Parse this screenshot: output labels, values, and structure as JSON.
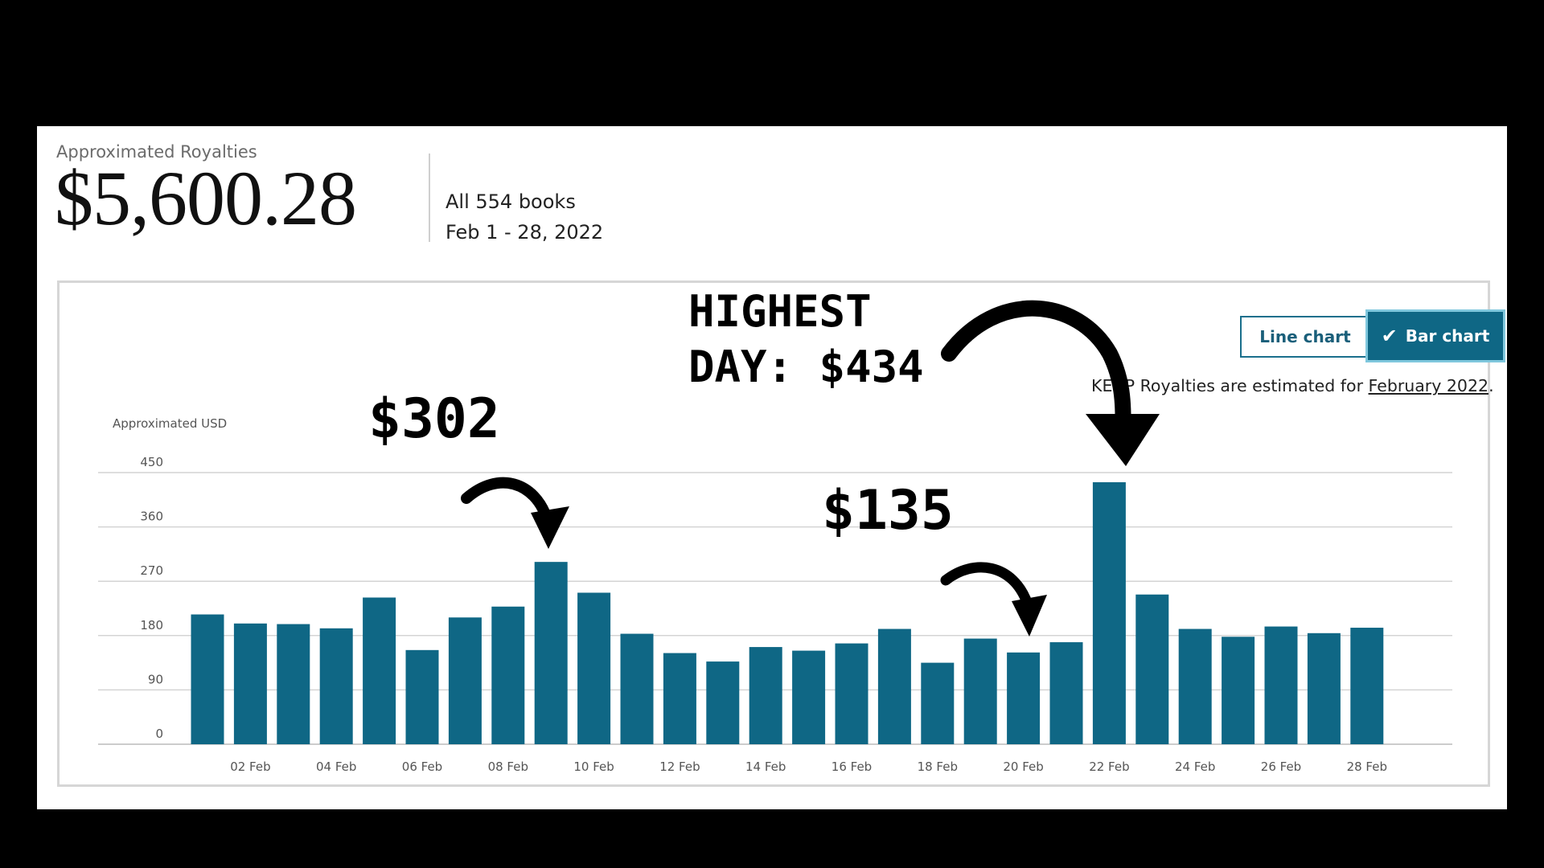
{
  "summary": {
    "label": "Approximated Royalties",
    "amount": "$5,600.28",
    "books": "All 554 books",
    "range": "Feb 1 - 28, 2022"
  },
  "controls": {
    "line_label": "Line chart",
    "bar_label": "Bar chart",
    "selected": "Bar chart",
    "check_icon": "check-icon"
  },
  "notice": {
    "prefix": "KENP Royalties are estimated for ",
    "link": "February 2022",
    "suffix": "."
  },
  "annotations": {
    "highest_line1": "HIGHEST",
    "highest_line2": "DAY: $434",
    "peak_302": "$302",
    "low_135": "$135"
  },
  "colors": {
    "bar": "#0f6785",
    "accent": "#1a6f8c"
  },
  "chart_data": {
    "type": "bar",
    "ylabel": "Approximated USD",
    "ylim": [
      0,
      450
    ],
    "yticks": [
      0,
      90,
      180,
      270,
      360,
      450
    ],
    "x_ticks": [
      "02 Feb",
      "04 Feb",
      "06 Feb",
      "08 Feb",
      "10 Feb",
      "12 Feb",
      "14 Feb",
      "16 Feb",
      "18 Feb",
      "20 Feb",
      "22 Feb",
      "24 Feb",
      "26 Feb",
      "28 Feb"
    ],
    "categories": [
      "01 Feb",
      "02 Feb",
      "03 Feb",
      "04 Feb",
      "05 Feb",
      "06 Feb",
      "07 Feb",
      "08 Feb",
      "09 Feb",
      "10 Feb",
      "11 Feb",
      "12 Feb",
      "13 Feb",
      "14 Feb",
      "15 Feb",
      "16 Feb",
      "17 Feb",
      "18 Feb",
      "19 Feb",
      "20 Feb",
      "21 Feb",
      "22 Feb",
      "23 Feb",
      "24 Feb",
      "25 Feb",
      "26 Feb",
      "27 Feb",
      "28 Feb"
    ],
    "values": [
      215,
      200,
      199,
      192,
      243,
      156,
      210,
      228,
      302,
      251,
      183,
      151,
      137,
      161,
      155,
      167,
      191,
      135,
      175,
      152,
      169,
      434,
      248,
      191,
      178,
      195,
      184,
      193
    ],
    "grid": true
  }
}
